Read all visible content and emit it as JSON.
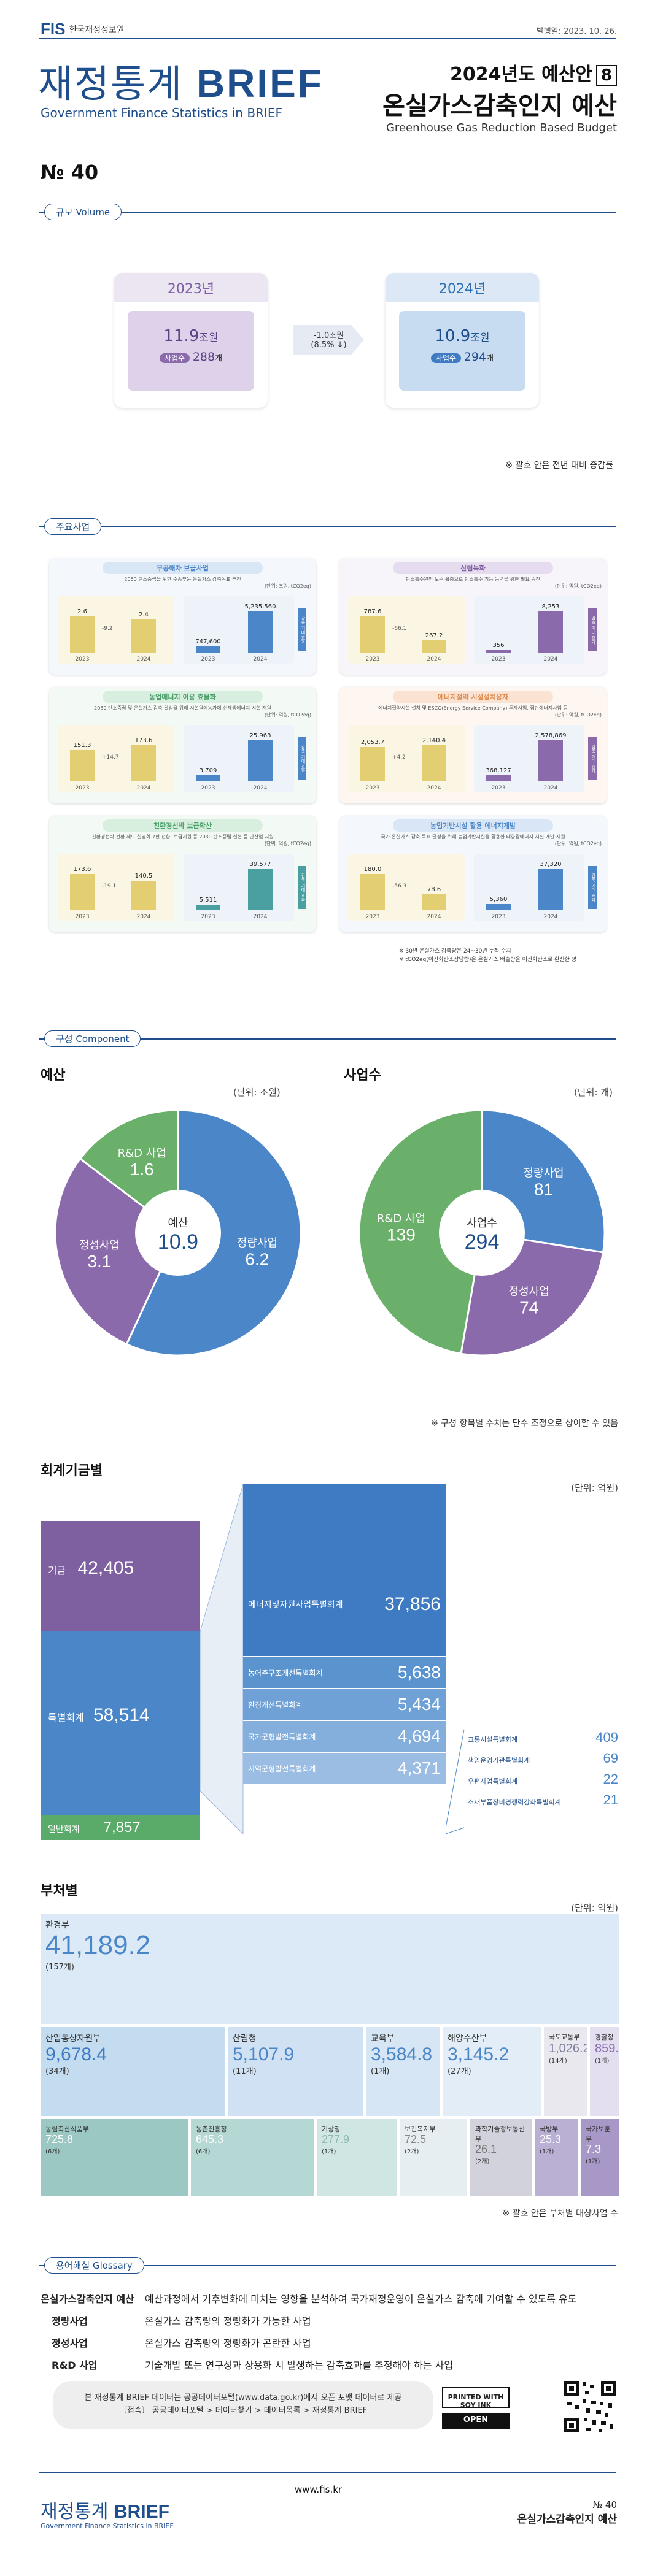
{
  "header": {
    "org_mark": "FIS",
    "org_name": "한국재정정보원",
    "pub_date": "발행일: 2023. 10. 26.",
    "title_kr": "재정통계",
    "title_brief": "BRIEF",
    "title_en": "Government Finance Statistics in BRIEF",
    "series_line": "2024년도 예산안",
    "series_num": "8",
    "topic_kr": "온실가스감축인지 예산",
    "topic_en": "Greenhouse Gas Reduction Based Budget",
    "issue": "№ 40"
  },
  "volume": {
    "label": "규모 Volume",
    "y2023": {
      "year": "2023년",
      "amount": "11.9",
      "amount_unit": "조원",
      "count_label": "사업수",
      "count": "288",
      "count_unit": "개"
    },
    "change": {
      "amount": "-1.0조원",
      "pct": "(8.5% ↓)"
    },
    "y2024": {
      "year": "2024년",
      "amount": "10.9",
      "amount_unit": "조원",
      "count_label": "사업수",
      "count": "294",
      "count_unit": "개"
    },
    "note": "※ 괄호 안은 전년 대비 증감률"
  },
  "projects": {
    "label": "주요사업",
    "cards": [
      {
        "title": "무공해차 보급사업",
        "desc": "2050 탄소중립을 위한 수송부문 온실가스 감축목표 추진",
        "unit": "(단위: 조원, tCO2eq)",
        "l1": "2.6",
        "l2": "2.4",
        "lc": "-9.2",
        "r1": "747,600",
        "r2": "5,235,560",
        "ry1": "2023",
        "ry2": "2024",
        "side": "감축 기대 효과"
      },
      {
        "title": "산림녹화",
        "desc": "탄소흡수원의 보존·확충으로 탄소흡수 기능 능력을 위한 필요 증진",
        "unit": "(단위: 억원, tCO2eq)",
        "l1": "787.6",
        "l2": "267.2",
        "lc": "-66.1",
        "r1": "356",
        "r2": "8,253",
        "ry1": "2023",
        "ry2": "2024",
        "side": "감축 기대 효과"
      },
      {
        "title": "농업에너지 이용 효율화",
        "desc": "2030 탄소중립 및 온실가스 감축 달성을 위해 시설원예농가에 신재생에너지 시설 지원",
        "unit": "(단위: 억원, tCO2eq)",
        "l1": "151.3",
        "l2": "173.6",
        "lc": "+14.7",
        "r1": "3,709",
        "r2": "25,963",
        "ry1": "2023",
        "ry2": "2024",
        "side": "감축 기대 효과"
      },
      {
        "title": "에너지절약 시설설치융자",
        "desc": "에너지절약시설 설치 및 ESCO(Energy Service Company) 투자사업, 집단에너지사업 등",
        "unit": "(단위: 억원, tCO2eq)",
        "l1": "2,053.7",
        "l2": "2,140.4",
        "lc": "+4.2",
        "r1": "368,127",
        "r2": "2,578,869",
        "ry1": "2023",
        "ry2": "2024",
        "side": "감축 기대 효과"
      },
      {
        "title": "친환경선박 보급확산",
        "desc": "친환경선박 전환 제도 설명회 7편 전환, 보급지원 등 2030 탄소중립 실현 등 단산업 지원",
        "unit": "(단위: 억원, tCO2eq)",
        "l1": "173.6",
        "l2": "140.5",
        "lc": "-19.1",
        "r1": "5,511",
        "r2": "39,577",
        "ry1": "2023",
        "ry2": "2024",
        "side": "감축 기대 효과"
      },
      {
        "title": "농업기반시설 활용 에너지개발",
        "desc": "국가 온실가스 감축 목표 달성을 위해 농업기반시설을 활용한 태양광에너지 시설 개발 지원",
        "unit": "(단위: 억원, tCO2eq)",
        "l1": "180.0",
        "l2": "78.6",
        "lc": "-56.3",
        "r1": "5,360",
        "r2": "37,320",
        "ry1": "2023",
        "ry2": "2024",
        "side": "감축 기대 효과"
      }
    ],
    "note1": "※ 30년 온실가스 감축량은 24~30년 누적 수치",
    "note2": "※ tCO2eq(이산화탄소상당량)은 온실가스 배출량을 이산화탄소로 환산한 양"
  },
  "component": {
    "label": "구성 Component",
    "budget": {
      "title": "예산",
      "unit": "(단위: 조원)",
      "center_label": "예산",
      "center_value": "10.9",
      "slices": [
        {
          "name": "정량사업",
          "value": "6.2",
          "color": "#4a86c8"
        },
        {
          "name": "정성사업",
          "value": "3.1",
          "color": "#8a6aaa"
        },
        {
          "name": "R&D 사업",
          "value": "1.6",
          "color": "#6ab06a"
        }
      ]
    },
    "count": {
      "title": "사업수",
      "unit": "(단위: 개)",
      "center_label": "사업수",
      "center_value": "294",
      "slices": [
        {
          "name": "정량사업",
          "value": "81",
          "color": "#4a86c8"
        },
        {
          "name": "정성사업",
          "value": "74",
          "color": "#8a6aaa"
        },
        {
          "name": "R&D 사업",
          "value": "139",
          "color": "#6ab06a"
        }
      ]
    },
    "note": "※ 구성 항목별 수치는 단수 조정으로 상이할 수 있음"
  },
  "funds": {
    "title": "회계기금별",
    "unit": "(단위: 억원)",
    "main": [
      {
        "name": "기금",
        "value": "42,405"
      },
      {
        "name": "특별회계",
        "value": "58,514"
      },
      {
        "name": "일반회계",
        "value": "7,857"
      }
    ],
    "special": [
      {
        "name": "에너지및자원사업특별회계",
        "value": "37,856"
      },
      {
        "name": "농어촌구조개선특별회계",
        "value": "5,638"
      },
      {
        "name": "환경개선특별회계",
        "value": "5,434"
      },
      {
        "name": "국가균형발전특별회계",
        "value": "4,694"
      },
      {
        "name": "지역균형발전특별회계",
        "value": "4,371"
      }
    ],
    "small": [
      {
        "name": "교통시설특별회계",
        "value": "409"
      },
      {
        "name": "책임운영기관특별회계",
        "value": "69"
      },
      {
        "name": "우편사업특별회계",
        "value": "22"
      },
      {
        "name": "소재부품장비경쟁력강화특별회계",
        "value": "21"
      }
    ]
  },
  "ministries": {
    "title": "부처별",
    "unit": "(단위: 억원)",
    "note": "※ 괄호 안은 부처별 대상사업 수",
    "items": [
      {
        "name": "환경부",
        "value": "41,189.2",
        "count": "(157개)"
      },
      {
        "name": "산업통상자원부",
        "value": "9,678.4",
        "count": "(34개)"
      },
      {
        "name": "산림청",
        "value": "5,107.9",
        "count": "(11개)"
      },
      {
        "name": "교육부",
        "value": "3,584.8",
        "count": "(1개)"
      },
      {
        "name": "해양수산부",
        "value": "3,145.2",
        "count": "(27개)"
      },
      {
        "name": "국토교통부",
        "value": "1,026.2",
        "count": "(14개)"
      },
      {
        "name": "경찰청",
        "value": "859.2",
        "count": "(1개)"
      },
      {
        "name": "농림축산식품부",
        "value": "725.8",
        "count": "(6개)"
      },
      {
        "name": "농촌진흥청",
        "value": "645.3",
        "count": "(6개)"
      },
      {
        "name": "기상청",
        "value": "277.9",
        "count": "(1개)"
      },
      {
        "name": "보건복지부",
        "value": "72.5",
        "count": "(2개)"
      },
      {
        "name": "과학기술정보통신부",
        "value": "26.1",
        "count": "(2개)"
      },
      {
        "name": "국방부",
        "value": "25.3",
        "count": "(1개)"
      },
      {
        "name": "국가보훈부",
        "value": "7.3",
        "count": "(1개)"
      }
    ]
  },
  "glossary": {
    "label": "용어해설 Glossary",
    "items": [
      {
        "term": "온실가스감축인지 예산",
        "def": "예산과정에서 기후변화에 미치는 영향을 분석하여 국가재정운영이 온실가스 감축에 기여할 수 있도록 유도"
      },
      {
        "term": "정량사업",
        "def": "온실가스 감축량의 정량화가 가능한 사업"
      },
      {
        "term": "정성사업",
        "def": "온실가스 감축량의 정량화가 곤란한 사업"
      },
      {
        "term": "R&D 사업",
        "def": "기술개발 또는 연구성과 상용화 시 발생하는 감축효과를 추정해야 하는 사업"
      }
    ]
  },
  "source_box": {
    "line1": "본 재정통계 BRIEF 데이터는 공공데이터포털(www.data.go.kr)에서 오픈 포맷 데이터로 제공",
    "line2": "〔접속〕 공공데이터포털 > 데이터찾기 > 데이터목록 > 재정통계 BRIEF"
  },
  "badges": {
    "soy": "PRINTED WITH SOY INK",
    "open": "OPEN"
  },
  "footer": {
    "title_kr": "재정통계",
    "title_brief": "BRIEF",
    "title_en": "Government Finance Statistics in BRIEF",
    "url": "www.fis.kr",
    "issue": "№ 40",
    "topic": "온실가스감축인지 예산"
  }
}
